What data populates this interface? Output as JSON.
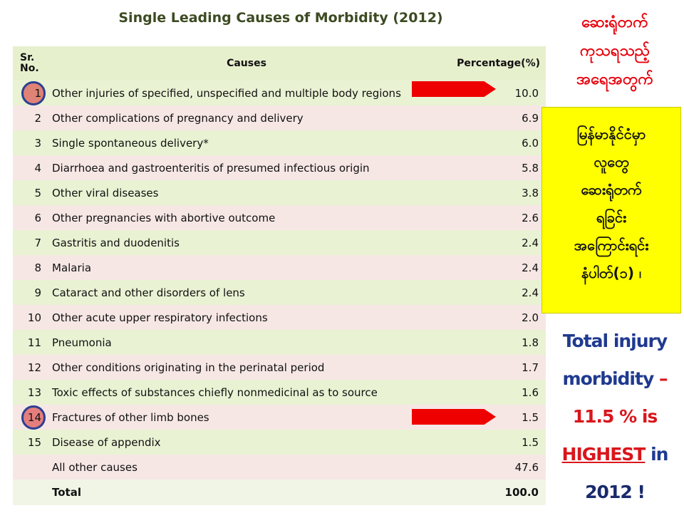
{
  "title": "Single Leading Causes of Morbidity (2012)",
  "table": {
    "headers": {
      "sr_line1": "Sr.",
      "sr_line2": "No.",
      "cause": "Causes",
      "percentage": "Percentage(%)"
    },
    "rows": [
      {
        "sr": "1",
        "cause": "Other injuries of specified, unspecified and multiple body regions",
        "pct": "10.0"
      },
      {
        "sr": "2",
        "cause": "Other complications of pregnancy and delivery",
        "pct": "6.9"
      },
      {
        "sr": "3",
        "cause": "Single spontaneous delivery*",
        "pct": "6.0"
      },
      {
        "sr": "4",
        "cause": "Diarrhoea and gastroenteritis of presumed infectious origin",
        "pct": "5.8"
      },
      {
        "sr": "5",
        "cause": "Other viral diseases",
        "pct": "3.8"
      },
      {
        "sr": "6",
        "cause": "Other pregnancies with abortive outcome",
        "pct": "2.6"
      },
      {
        "sr": "7",
        "cause": "Gastritis and duodenitis",
        "pct": "2.4"
      },
      {
        "sr": "8",
        "cause": "Malaria",
        "pct": "2.4"
      },
      {
        "sr": "9",
        "cause": "Cataract and other disorders of lens",
        "pct": "2.4"
      },
      {
        "sr": "10",
        "cause": "Other acute upper respiratory infections",
        "pct": "2.0"
      },
      {
        "sr": "11",
        "cause": "Pneumonia",
        "pct": "1.8"
      },
      {
        "sr": "12",
        "cause": "Other conditions originating in the perinatal period",
        "pct": "1.7"
      },
      {
        "sr": "13",
        "cause": "Toxic effects of substances chiefly nonmedicinal as to source",
        "pct": "1.6"
      },
      {
        "sr": "14",
        "cause": "Fractures of other limb bones",
        "pct": "1.5"
      },
      {
        "sr": "15",
        "cause": "Disease of appendix",
        "pct": "1.5"
      },
      {
        "sr": "",
        "cause": "All other causes",
        "pct": "47.6"
      }
    ],
    "total": {
      "label": "Total",
      "pct": "100.0"
    }
  },
  "right_heading": [
    "ဆေးရုံတက်",
    "ကုသရသည့်",
    "အရေအတွက်"
  ],
  "yellow_box": [
    "မြန်မာနိုင်ငံမှာ",
    "လူတွေ",
    "ဆေးရုံတက်",
    "ရခြင်း",
    "အကြောင်းရင်း",
    "နံပါတ်(၁)   ၊"
  ],
  "summary": {
    "line1": "Total injury",
    "line2": "morbidity",
    "dash": " –",
    "line3": "11.5 % is",
    "highlight": "HIGHEST",
    "in": "  in",
    "line5": "2012 !"
  },
  "colors": {
    "title": "#3c4a22",
    "arrow": "#ee0000",
    "circle_border": "#2b3f92",
    "yellow": "#ffff00",
    "accent_red": "#e8000b",
    "accent_blue": "#1f3a8f"
  }
}
